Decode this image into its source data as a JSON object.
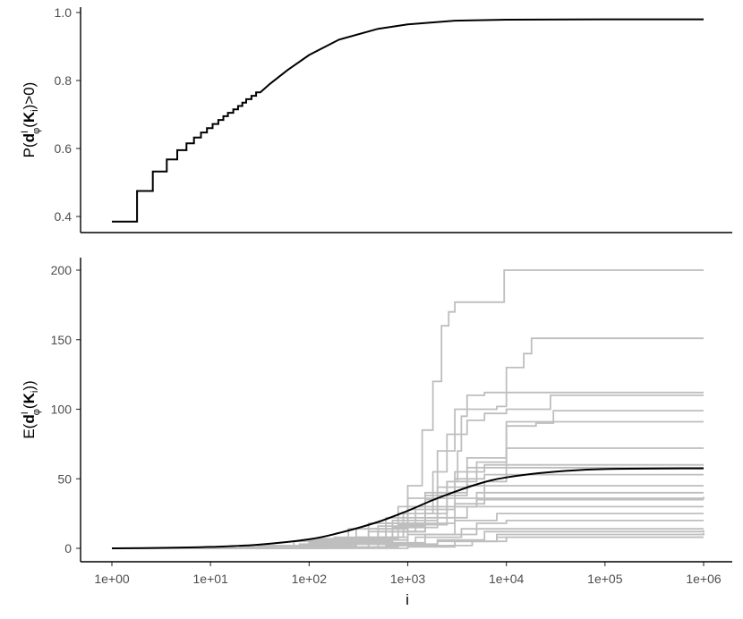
{
  "chart_data": [
    {
      "type": "line",
      "panel": "top",
      "ylabel": "P(d^I_φ(K_i)>0)",
      "ylabel_parts": {
        "prefix": "P(",
        "d": "d",
        "sup": "I",
        "sub": "φ",
        "mid": "(",
        "K": "K",
        "ksub": "i",
        "suffix": ")>0)"
      },
      "x_scale": "log10",
      "xlim": [
        1,
        1000000
      ],
      "ylim": [
        0.35,
        1.01
      ],
      "yticks": [
        0.4,
        0.6,
        0.8,
        1.0
      ],
      "ytick_labels": [
        "0.4",
        "0.6",
        "0.8",
        "1.0"
      ],
      "grid": false,
      "series": [
        {
          "color": "#000000",
          "step_points": [
            [
              1,
              0.385
            ],
            [
              1.8,
              0.385
            ],
            [
              1.8,
              0.475
            ],
            [
              2.6,
              0.475
            ],
            [
              2.6,
              0.532
            ],
            [
              3.6,
              0.532
            ],
            [
              3.6,
              0.568
            ],
            [
              4.6,
              0.568
            ],
            [
              4.6,
              0.595
            ],
            [
              5.7,
              0.595
            ],
            [
              5.7,
              0.615
            ],
            [
              6.8,
              0.615
            ],
            [
              6.8,
              0.632
            ],
            [
              8,
              0.632
            ],
            [
              8,
              0.647
            ],
            [
              9.2,
              0.647
            ],
            [
              9.2,
              0.66
            ],
            [
              10.5,
              0.66
            ],
            [
              10.5,
              0.672
            ],
            [
              12,
              0.672
            ],
            [
              12,
              0.684
            ],
            [
              13.5,
              0.684
            ],
            [
              13.5,
              0.695
            ],
            [
              15,
              0.695
            ],
            [
              15,
              0.705
            ],
            [
              17,
              0.705
            ],
            [
              17,
              0.715
            ],
            [
              19,
              0.715
            ],
            [
              19,
              0.725
            ],
            [
              21,
              0.725
            ],
            [
              21,
              0.735
            ],
            [
              23,
              0.735
            ],
            [
              23,
              0.745
            ],
            [
              26,
              0.745
            ],
            [
              26,
              0.755
            ],
            [
              29,
              0.755
            ],
            [
              29,
              0.765
            ],
            [
              32,
              0.765
            ]
          ],
          "curve_points": [
            [
              32,
              0.765
            ],
            [
              40,
              0.79
            ],
            [
              60,
              0.83
            ],
            [
              100,
              0.875
            ],
            [
              200,
              0.92
            ],
            [
              500,
              0.952
            ],
            [
              1000,
              0.965
            ],
            [
              3000,
              0.976
            ],
            [
              10000,
              0.979
            ],
            [
              100000,
              0.98
            ],
            [
              1000000,
              0.98
            ]
          ]
        }
      ]
    },
    {
      "type": "line",
      "panel": "bottom",
      "ylabel": "E(d^I_φ(K_i))",
      "ylabel_parts": {
        "prefix": "E(",
        "d": "d",
        "sup": "I",
        "sub": "φ",
        "mid": "(",
        "K": "K",
        "ksub": "i",
        "suffix": "))"
      },
      "xlabel": "i",
      "x_scale": "log10",
      "xlim": [
        1,
        1000000
      ],
      "ylim": [
        -8,
        207
      ],
      "xticks": [
        1,
        10,
        100,
        1000,
        10000,
        100000,
        1000000
      ],
      "xtick_labels": [
        "1e+00",
        "1e+01",
        "1e+02",
        "1e+03",
        "1e+04",
        "1e+05",
        "1e+06"
      ],
      "yticks": [
        0,
        50,
        100,
        150,
        200
      ],
      "ytick_labels": [
        "0",
        "50",
        "100",
        "150",
        "200"
      ],
      "grid": false,
      "mean_series": {
        "color": "#000000",
        "points": [
          [
            1,
            0
          ],
          [
            3,
            0.3
          ],
          [
            10,
            1
          ],
          [
            30,
            2.6
          ],
          [
            100,
            6.5
          ],
          [
            200,
            11
          ],
          [
            500,
            19
          ],
          [
            1000,
            27
          ],
          [
            2000,
            36
          ],
          [
            5000,
            46
          ],
          [
            10000,
            51
          ],
          [
            30000,
            55
          ],
          [
            100000,
            57
          ],
          [
            1000000,
            57.5
          ]
        ]
      },
      "replicate_series_color": "#bebebe",
      "replicate_series": [
        [
          [
            1,
            0
          ],
          [
            20,
            1
          ],
          [
            50,
            2
          ],
          [
            200,
            4
          ],
          [
            500,
            8
          ],
          [
            900,
            12
          ],
          [
            1000,
            45
          ],
          [
            1400,
            85
          ],
          [
            1800,
            120
          ],
          [
            2200,
            160
          ],
          [
            2600,
            170
          ],
          [
            3000,
            177
          ],
          [
            4000,
            177
          ],
          [
            6000,
            177
          ],
          [
            9500,
            177
          ],
          [
            9500,
            200
          ],
          [
            1000000,
            200
          ]
        ],
        [
          [
            1,
            0
          ],
          [
            30,
            1
          ],
          [
            100,
            3
          ],
          [
            400,
            6
          ],
          [
            1000,
            12
          ],
          [
            1500,
            25
          ],
          [
            2500,
            48
          ],
          [
            3200,
            70
          ],
          [
            3500,
            95
          ],
          [
            4000,
            100
          ],
          [
            8000,
            102
          ],
          [
            10000,
            130
          ],
          [
            15000,
            140
          ],
          [
            18000,
            151
          ],
          [
            1000000,
            151
          ]
        ],
        [
          [
            1,
            0
          ],
          [
            40,
            2
          ],
          [
            150,
            6
          ],
          [
            500,
            16
          ],
          [
            1500,
            35
          ],
          [
            2000,
            70
          ],
          [
            3000,
            100
          ],
          [
            4000,
            110
          ],
          [
            6000,
            112
          ],
          [
            1000000,
            112
          ]
        ],
        [
          [
            1,
            0
          ],
          [
            25,
            1
          ],
          [
            80,
            3
          ],
          [
            300,
            8
          ],
          [
            900,
            25
          ],
          [
            1800,
            55
          ],
          [
            2500,
            82
          ],
          [
            4000,
            92
          ],
          [
            6000,
            97
          ],
          [
            10000,
            100
          ],
          [
            25000,
            100
          ],
          [
            28000,
            110
          ],
          [
            1000000,
            110
          ]
        ],
        [
          [
            1,
            0
          ],
          [
            50,
            2
          ],
          [
            200,
            7
          ],
          [
            700,
            20
          ],
          [
            2000,
            40
          ],
          [
            4000,
            65
          ],
          [
            10000,
            88
          ],
          [
            20000,
            90
          ],
          [
            30000,
            99
          ],
          [
            1000000,
            99
          ]
        ],
        [
          [
            1,
            0
          ],
          [
            60,
            2
          ],
          [
            300,
            8
          ],
          [
            1000,
            18
          ],
          [
            3000,
            32
          ],
          [
            6000,
            48
          ],
          [
            10000,
            91
          ],
          [
            1000000,
            91
          ]
        ],
        [
          [
            1,
            0
          ],
          [
            30,
            1
          ],
          [
            100,
            4
          ],
          [
            400,
            12
          ],
          [
            1200,
            30
          ],
          [
            2500,
            48
          ],
          [
            5000,
            62
          ],
          [
            10000,
            72
          ],
          [
            1000000,
            72
          ]
        ],
        [
          [
            1,
            0
          ],
          [
            40,
            2
          ],
          [
            150,
            6
          ],
          [
            600,
            18
          ],
          [
            1500,
            40
          ],
          [
            3000,
            55
          ],
          [
            6000,
            60
          ],
          [
            1000000,
            60
          ]
        ],
        [
          [
            1,
            0
          ],
          [
            20,
            1
          ],
          [
            70,
            5
          ],
          [
            250,
            14
          ],
          [
            800,
            30
          ],
          [
            2000,
            44
          ],
          [
            4000,
            58
          ],
          [
            1000000,
            58
          ]
        ],
        [
          [
            1,
            0
          ],
          [
            35,
            2
          ],
          [
            120,
            7
          ],
          [
            400,
            18
          ],
          [
            1000,
            36
          ],
          [
            3000,
            50
          ],
          [
            6000,
            53
          ],
          [
            1000000,
            53
          ]
        ],
        [
          [
            1,
            0
          ],
          [
            45,
            2
          ],
          [
            180,
            8
          ],
          [
            600,
            22
          ],
          [
            1500,
            38
          ],
          [
            4000,
            45
          ],
          [
            1000000,
            45
          ]
        ],
        [
          [
            1,
            0
          ],
          [
            50,
            1
          ],
          [
            200,
            5
          ],
          [
            700,
            15
          ],
          [
            2000,
            30
          ],
          [
            5000,
            40
          ],
          [
            1000000,
            40
          ]
        ],
        [
          [
            1,
            0
          ],
          [
            30,
            2
          ],
          [
            100,
            6
          ],
          [
            300,
            14
          ],
          [
            1000,
            28
          ],
          [
            3000,
            36
          ],
          [
            1000000,
            37
          ]
        ],
        [
          [
            1,
            0
          ],
          [
            60,
            2
          ],
          [
            250,
            7
          ],
          [
            800,
            17
          ],
          [
            2500,
            30
          ],
          [
            5000,
            35
          ],
          [
            1000000,
            35
          ]
        ],
        [
          [
            1,
            0
          ],
          [
            40,
            1
          ],
          [
            150,
            5
          ],
          [
            500,
            12
          ],
          [
            1500,
            22
          ],
          [
            4000,
            30
          ],
          [
            1000000,
            30
          ]
        ],
        [
          [
            1,
            0
          ],
          [
            70,
            1
          ],
          [
            300,
            4
          ],
          [
            1000,
            10
          ],
          [
            3000,
            20
          ],
          [
            8000,
            25
          ],
          [
            1000000,
            25
          ]
        ],
        [
          [
            1,
            0
          ],
          [
            80,
            1
          ],
          [
            400,
            4
          ],
          [
            1500,
            10
          ],
          [
            5000,
            18
          ],
          [
            10000,
            20
          ],
          [
            1000000,
            20
          ]
        ],
        [
          [
            1,
            0
          ],
          [
            100,
            1
          ],
          [
            500,
            3
          ],
          [
            2000,
            6
          ],
          [
            6000,
            12
          ],
          [
            1000000,
            13
          ]
        ],
        [
          [
            1,
            0
          ],
          [
            120,
            1
          ],
          [
            600,
            2
          ],
          [
            2000,
            5
          ],
          [
            8000,
            10
          ],
          [
            1000000,
            11
          ]
        ],
        [
          [
            1,
            0
          ],
          [
            150,
            1
          ],
          [
            800,
            2
          ],
          [
            3000,
            5
          ],
          [
            10000,
            8
          ],
          [
            1000000,
            8
          ]
        ],
        [
          [
            1,
            0
          ],
          [
            200,
            0
          ],
          [
            1000,
            1
          ],
          [
            3000,
            2
          ],
          [
            4500,
            5
          ],
          [
            8000,
            8
          ],
          [
            1000000,
            8
          ]
        ],
        [
          [
            1,
            0
          ],
          [
            100,
            1
          ],
          [
            400,
            3
          ],
          [
            1200,
            8
          ],
          [
            3500,
            14
          ],
          [
            1000000,
            14
          ]
        ]
      ]
    }
  ]
}
